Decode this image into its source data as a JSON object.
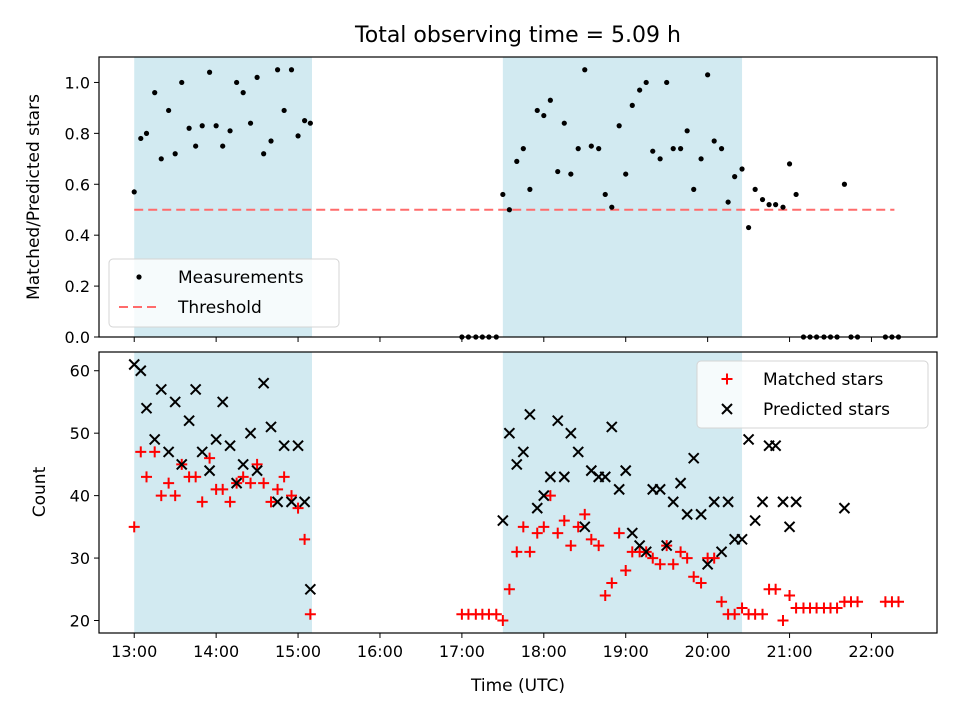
{
  "chart_data": {
    "title": "Total observing time = 5.09 h",
    "xlabel": "Time (UTC)",
    "x_unit": "UTC hour of day",
    "xlim": [
      12.57,
      22.8
    ],
    "xticks": [
      13,
      14,
      15,
      16,
      17,
      18,
      19,
      20,
      21,
      22
    ],
    "xtick_labels": [
      "13:00",
      "14:00",
      "15:00",
      "16:00",
      "17:00",
      "18:00",
      "19:00",
      "20:00",
      "21:00",
      "22:00"
    ],
    "shaded_intervals": [
      [
        13.0,
        15.17
      ],
      [
        17.5,
        20.42
      ]
    ],
    "shade_color": "#add8e6",
    "panels": [
      {
        "type": "scatter",
        "ylabel": "Matched/Predicted stars",
        "ylim": [
          0,
          1.1
        ],
        "yticks": [
          0.0,
          0.2,
          0.4,
          0.6,
          0.8,
          1.0
        ],
        "ytick_labels": [
          "0.0",
          "0.2",
          "0.4",
          "0.6",
          "0.8",
          "1.0"
        ],
        "legend_position": "bottom-left",
        "threshold": {
          "name": "Threshold",
          "y": 0.5,
          "x_range": [
            13.0,
            22.28
          ],
          "color": "#ff6b6b"
        },
        "series": [
          {
            "name": "Measurements",
            "marker": "dot",
            "color": "#000000",
            "x": [
              13.0,
              13.08,
              13.15,
              13.25,
              13.33,
              13.42,
              13.5,
              13.58,
              13.67,
              13.75,
              13.83,
              13.92,
              14.0,
              14.08,
              14.17,
              14.25,
              14.33,
              14.42,
              14.5,
              14.58,
              14.67,
              14.75,
              14.83,
              14.92,
              15.0,
              15.08,
              15.15,
              17.0,
              17.08,
              17.17,
              17.25,
              17.33,
              17.42,
              17.5,
              17.58,
              17.67,
              17.75,
              17.83,
              17.92,
              18.0,
              18.08,
              18.17,
              18.25,
              18.33,
              18.42,
              18.5,
              18.58,
              18.67,
              18.75,
              18.83,
              18.92,
              19.0,
              19.08,
              19.17,
              19.25,
              19.33,
              19.42,
              19.5,
              19.58,
              19.67,
              19.75,
              19.83,
              19.92,
              20.0,
              20.08,
              20.17,
              20.25,
              20.33,
              20.42,
              20.5,
              20.58,
              20.67,
              20.75,
              20.83,
              20.92,
              21.0,
              21.08,
              21.17,
              21.25,
              21.33,
              21.42,
              21.5,
              21.58,
              21.67,
              21.75,
              21.83,
              22.17,
              22.25,
              22.33
            ],
            "y": [
              0.57,
              0.78,
              0.8,
              0.96,
              0.7,
              0.89,
              0.72,
              1.0,
              0.82,
              0.75,
              0.83,
              1.04,
              0.83,
              0.75,
              0.81,
              1.0,
              0.96,
              0.84,
              1.02,
              0.72,
              0.77,
              1.05,
              0.89,
              1.05,
              0.79,
              0.85,
              0.84,
              0.0,
              0.0,
              0.0,
              0.0,
              0.0,
              0.0,
              0.56,
              0.5,
              0.69,
              0.74,
              0.58,
              0.89,
              0.87,
              0.93,
              0.65,
              0.84,
              0.64,
              0.74,
              1.05,
              0.75,
              0.74,
              0.56,
              0.51,
              0.83,
              0.64,
              0.91,
              0.97,
              1.0,
              0.73,
              0.7,
              1.0,
              0.74,
              0.74,
              0.81,
              0.58,
              0.7,
              1.03,
              0.77,
              0.74,
              0.53,
              0.63,
              0.66,
              0.43,
              0.58,
              0.54,
              0.52,
              0.52,
              0.51,
              0.68,
              0.56,
              0.0,
              0.0,
              0.0,
              0.0,
              0.0,
              0.0,
              0.6,
              0.0,
              0.0,
              0.0,
              0.0,
              0.0
            ]
          }
        ]
      },
      {
        "type": "scatter",
        "ylabel": "Count",
        "ylim": [
          18,
          63
        ],
        "yticks": [
          20,
          30,
          40,
          50,
          60
        ],
        "ytick_labels": [
          "20",
          "30",
          "40",
          "50",
          "60"
        ],
        "legend_position": "top-right",
        "series": [
          {
            "name": "Matched stars",
            "marker": "plus",
            "color": "#ff0000",
            "x": [
              13.0,
              13.08,
              13.15,
              13.25,
              13.33,
              13.42,
              13.5,
              13.58,
              13.67,
              13.75,
              13.83,
              13.92,
              14.0,
              14.08,
              14.17,
              14.25,
              14.33,
              14.42,
              14.5,
              14.58,
              14.67,
              14.75,
              14.83,
              14.92,
              15.0,
              15.08,
              15.15,
              17.0,
              17.08,
              17.17,
              17.25,
              17.33,
              17.42,
              17.5,
              17.58,
              17.67,
              17.75,
              17.83,
              17.92,
              18.0,
              18.08,
              18.17,
              18.25,
              18.33,
              18.42,
              18.5,
              18.58,
              18.67,
              18.75,
              18.83,
              18.92,
              19.0,
              19.08,
              19.17,
              19.25,
              19.33,
              19.42,
              19.5,
              19.58,
              19.67,
              19.75,
              19.83,
              19.92,
              20.0,
              20.08,
              20.17,
              20.25,
              20.33,
              20.42,
              20.5,
              20.58,
              20.67,
              20.75,
              20.83,
              20.92,
              21.0,
              21.08,
              21.17,
              21.25,
              21.33,
              21.42,
              21.5,
              21.58,
              21.67,
              21.75,
              21.83,
              22.17,
              22.25,
              22.33
            ],
            "y": [
              35,
              47,
              43,
              47,
              40,
              42,
              40,
              45,
              43,
              43,
              39,
              46,
              41,
              41,
              39,
              42,
              43,
              42,
              45,
              42,
              39,
              41,
              43,
              40,
              38,
              33,
              21,
              21,
              21,
              21,
              21,
              21,
              21,
              20,
              25,
              31,
              35,
              31,
              34,
              35,
              40,
              34,
              36,
              32,
              35,
              37,
              33,
              32,
              24,
              26,
              34,
              28,
              31,
              31,
              31,
              30,
              29,
              32,
              29,
              31,
              30,
              27,
              26,
              30,
              30,
              23,
              21,
              21,
              22,
              21,
              21,
              21,
              25,
              25,
              20,
              24,
              22,
              22,
              22,
              22,
              22,
              22,
              22,
              23,
              23,
              23,
              23,
              23,
              23
            ]
          },
          {
            "name": "Predicted stars",
            "marker": "x",
            "color": "#000000",
            "x": [
              13.0,
              13.08,
              13.15,
              13.25,
              13.33,
              13.42,
              13.5,
              13.58,
              13.67,
              13.75,
              13.83,
              13.92,
              14.0,
              14.08,
              14.17,
              14.25,
              14.33,
              14.42,
              14.5,
              14.58,
              14.67,
              14.75,
              14.83,
              14.92,
              15.0,
              15.08,
              15.15,
              17.5,
              17.58,
              17.67,
              17.75,
              17.83,
              17.92,
              18.0,
              18.08,
              18.17,
              18.25,
              18.33,
              18.42,
              18.5,
              18.58,
              18.67,
              18.75,
              18.83,
              18.92,
              19.0,
              19.08,
              19.17,
              19.25,
              19.33,
              19.42,
              19.5,
              19.58,
              19.67,
              19.75,
              19.83,
              19.92,
              20.0,
              20.08,
              20.17,
              20.25,
              20.33,
              20.42,
              20.5,
              20.58,
              20.67,
              20.75,
              20.83,
              20.92,
              21.0,
              21.08,
              21.67
            ],
            "y": [
              61,
              60,
              54,
              49,
              57,
              47,
              55,
              45,
              52,
              57,
              47,
              44,
              49,
              55,
              48,
              42,
              45,
              50,
              44,
              58,
              51,
              39,
              48,
              39,
              48,
              39,
              25,
              36,
              50,
              45,
              47,
              53,
              38,
              40,
              43,
              52,
              43,
              50,
              47,
              35,
              44,
              43,
              43,
              51,
              41,
              44,
              34,
              32,
              31,
              41,
              41,
              32,
              39,
              42,
              37,
              46,
              37,
              29,
              39,
              31,
              39,
              33,
              33,
              49,
              36,
              39,
              48,
              48,
              39,
              35,
              39,
              38
            ]
          }
        ]
      }
    ]
  }
}
